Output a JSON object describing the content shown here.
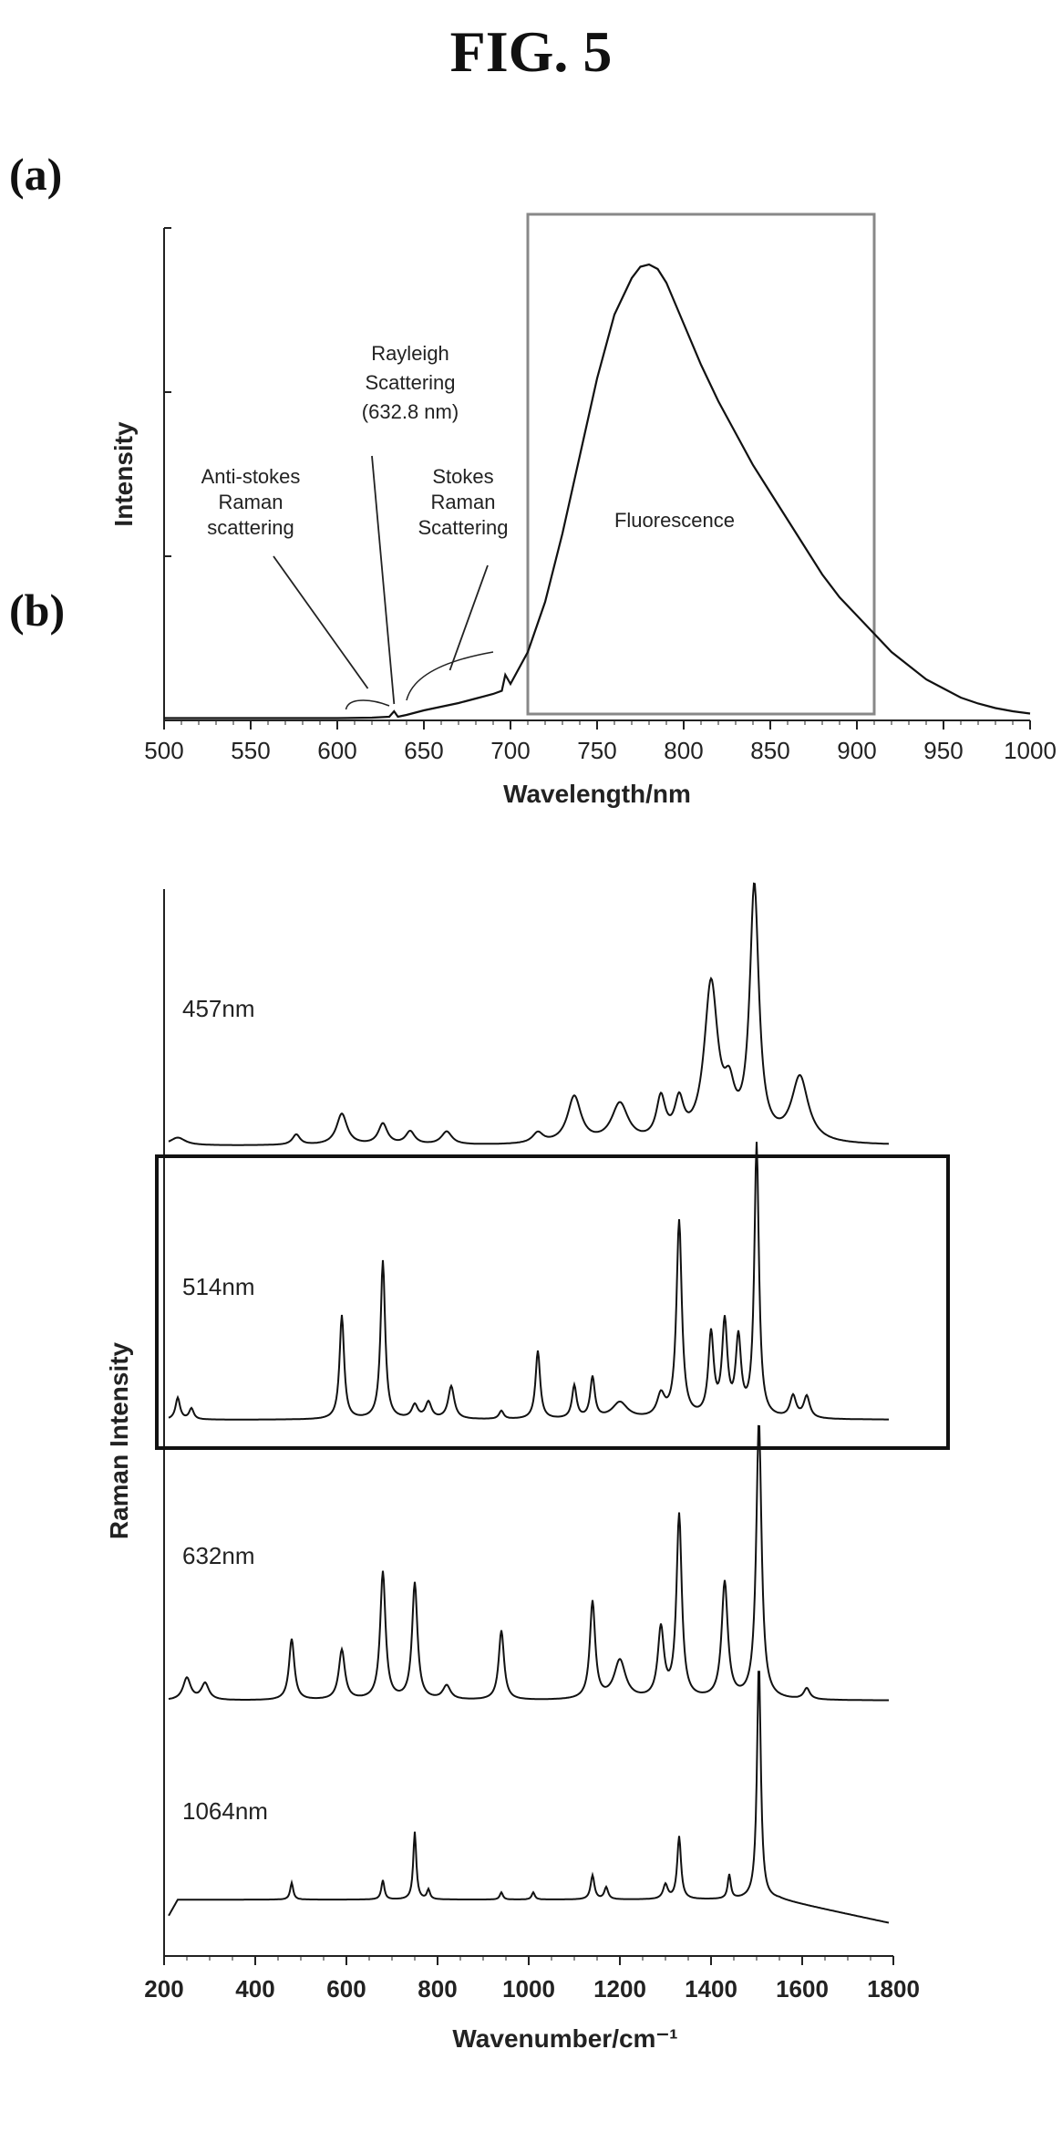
{
  "figure": {
    "title": "FIG. 5"
  },
  "chart_data": [
    {
      "id": "a",
      "panel_label": "(a)",
      "type": "line",
      "xlabel": "Wavelength/nm",
      "ylabel": "Intensity",
      "xlim": [
        500,
        1000
      ],
      "ylim": [
        0,
        1.0
      ],
      "xticks": [
        500,
        550,
        600,
        650,
        700,
        750,
        800,
        850,
        900,
        950,
        1000
      ],
      "highlight_range": [
        710,
        910
      ],
      "annotations": [
        {
          "lines": [
            "Rayleigh",
            "Scattering",
            "(632.8 nm)"
          ],
          "target": 632.8
        },
        {
          "lines": [
            "Anti-stokes",
            "Raman",
            "scattering"
          ],
          "target": 615
        },
        {
          "lines": [
            "Stokes",
            "Raman",
            "Scattering"
          ],
          "target": 665
        },
        {
          "lines": [
            "Fluorescence"
          ],
          "target": 780
        }
      ],
      "series": [
        {
          "x": [
            500,
            550,
            600,
            620,
            630,
            632.8,
            635,
            640,
            650,
            660,
            670,
            680,
            690,
            695,
            697,
            700,
            710,
            720,
            730,
            740,
            750,
            760,
            770,
            775,
            780,
            785,
            790,
            800,
            810,
            820,
            830,
            840,
            850,
            860,
            870,
            880,
            890,
            900,
            910,
            920,
            930,
            940,
            950,
            960,
            970,
            980,
            990,
            1000
          ],
          "y": [
            0.005,
            0.005,
            0.005,
            0.006,
            0.008,
            0.02,
            0.008,
            0.012,
            0.022,
            0.03,
            0.038,
            0.048,
            0.058,
            0.065,
            0.1,
            0.08,
            0.15,
            0.26,
            0.41,
            0.58,
            0.75,
            0.89,
            0.97,
            0.995,
            1.0,
            0.99,
            0.96,
            0.87,
            0.78,
            0.7,
            0.63,
            0.56,
            0.5,
            0.44,
            0.38,
            0.32,
            0.27,
            0.23,
            0.19,
            0.15,
            0.12,
            0.09,
            0.07,
            0.05,
            0.037,
            0.027,
            0.02,
            0.015
          ]
        }
      ]
    },
    {
      "id": "b",
      "panel_label": "(b)",
      "type": "line",
      "xlabel": "Wavenumber/cm⁻¹",
      "ylabel": "Raman Intensity",
      "xlim": [
        200,
        1800
      ],
      "xticks": [
        200,
        400,
        600,
        800,
        1000,
        1200,
        1400,
        1600,
        1800
      ],
      "highlighted_series": "514nm",
      "series": [
        {
          "name": "457nm",
          "baseline": 0.02,
          "peaks": [
            [
              230,
              0.03,
              20
            ],
            [
              490,
              0.04,
              10
            ],
            [
              590,
              0.12,
              14
            ],
            [
              680,
              0.08,
              12
            ],
            [
              740,
              0.05,
              12
            ],
            [
              820,
              0.05,
              14
            ],
            [
              1020,
              0.04,
              14
            ],
            [
              1100,
              0.18,
              18
            ],
            [
              1200,
              0.15,
              22
            ],
            [
              1290,
              0.16,
              12
            ],
            [
              1330,
              0.14,
              12
            ],
            [
              1400,
              0.6,
              18
            ],
            [
              1440,
              0.15,
              14
            ],
            [
              1495,
              0.97,
              12
            ],
            [
              1595,
              0.25,
              22
            ]
          ]
        },
        {
          "name": "514nm",
          "baseline": 0.01,
          "peaks": [
            [
              230,
              0.08,
              6
            ],
            [
              260,
              0.04,
              6
            ],
            [
              590,
              0.38,
              6
            ],
            [
              680,
              0.58,
              6
            ],
            [
              750,
              0.05,
              8
            ],
            [
              780,
              0.06,
              8
            ],
            [
              830,
              0.12,
              8
            ],
            [
              940,
              0.03,
              6
            ],
            [
              1020,
              0.25,
              6
            ],
            [
              1100,
              0.12,
              6
            ],
            [
              1140,
              0.15,
              6
            ],
            [
              1200,
              0.06,
              20
            ],
            [
              1290,
              0.08,
              10
            ],
            [
              1330,
              0.72,
              7
            ],
            [
              1400,
              0.3,
              7
            ],
            [
              1430,
              0.34,
              7
            ],
            [
              1460,
              0.28,
              7
            ],
            [
              1500,
              1.0,
              6
            ],
            [
              1580,
              0.08,
              8
            ],
            [
              1610,
              0.08,
              8
            ]
          ]
        },
        {
          "name": "632nm",
          "baseline": 0.01,
          "peaks": [
            [
              250,
              0.08,
              10
            ],
            [
              290,
              0.06,
              10
            ],
            [
              480,
              0.22,
              7
            ],
            [
              590,
              0.18,
              8
            ],
            [
              680,
              0.46,
              7
            ],
            [
              750,
              0.42,
              7
            ],
            [
              820,
              0.05,
              10
            ],
            [
              940,
              0.25,
              7
            ],
            [
              1140,
              0.35,
              7
            ],
            [
              1200,
              0.14,
              15
            ],
            [
              1290,
              0.25,
              8
            ],
            [
              1330,
              0.66,
              7
            ],
            [
              1430,
              0.42,
              8
            ],
            [
              1505,
              1.0,
              7
            ],
            [
              1610,
              0.04,
              8
            ]
          ]
        },
        {
          "name": "1064nm",
          "baseline": 0.12,
          "peaks": [
            [
              480,
              0.07,
              4
            ],
            [
              680,
              0.08,
              4
            ],
            [
              750,
              0.28,
              4
            ],
            [
              780,
              0.04,
              4
            ],
            [
              940,
              0.03,
              4
            ],
            [
              1010,
              0.03,
              4
            ],
            [
              1140,
              0.1,
              5
            ],
            [
              1170,
              0.05,
              5
            ],
            [
              1330,
              0.26,
              5
            ],
            [
              1300,
              0.06,
              6
            ],
            [
              1440,
              0.1,
              4
            ],
            [
              1505,
              0.98,
              5
            ]
          ]
        }
      ]
    }
  ]
}
